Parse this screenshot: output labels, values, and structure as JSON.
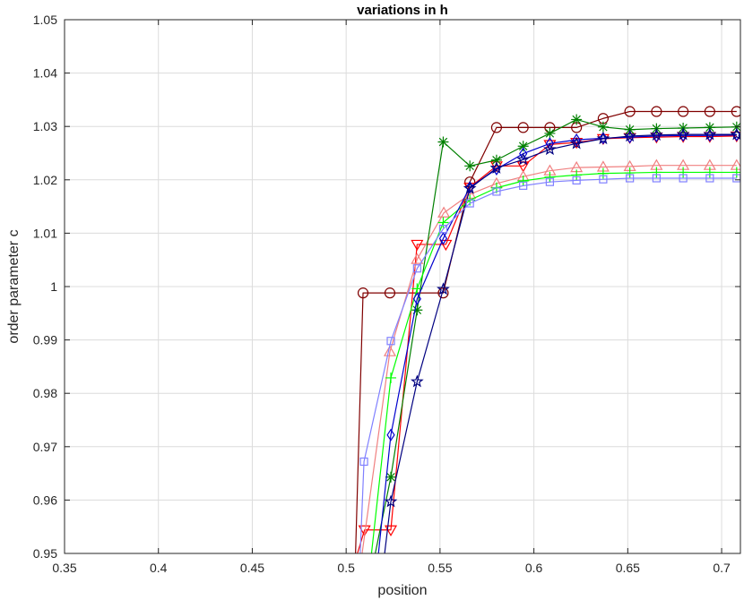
{
  "chart_data": {
    "type": "line",
    "title": "variations in h",
    "xlabel": "position",
    "ylabel": "order parameter c",
    "xlim": [
      0.35,
      0.71
    ],
    "ylim": [
      0.95,
      1.05
    ],
    "grid": true,
    "x_ticks": [
      0.35,
      0.4,
      0.45,
      0.5,
      0.55,
      0.6,
      0.65,
      0.7
    ],
    "x_tick_labels": [
      "0.35",
      "0.4",
      "0.45",
      "0.5",
      "0.55",
      "0.6",
      "0.65",
      "0.7"
    ],
    "y_ticks": [
      0.95,
      0.96,
      0.97,
      0.98,
      0.99,
      1.0,
      1.01,
      1.02,
      1.03,
      1.04,
      1.05
    ],
    "y_tick_labels": [
      "0.95",
      "0.96",
      "0.97",
      "0.98",
      "0.99",
      "1",
      "1.01",
      "1.02",
      "1.03",
      "1.04",
      "1.05"
    ],
    "series": [
      {
        "color": "#800000",
        "marker": "circle",
        "x": [
          0.505,
          0.509,
          0.5233,
          0.5517,
          0.5659,
          0.5801,
          0.5943,
          0.6085,
          0.6227,
          0.6369,
          0.6511,
          0.6653,
          0.6795,
          0.6937,
          0.708
        ],
        "y": [
          0.95,
          0.9988,
          0.9988,
          0.9988,
          1.0196,
          1.0298,
          1.0298,
          1.0298,
          1.0298,
          1.0315,
          1.0328,
          1.0328,
          1.0328,
          1.0328,
          1.0328
        ]
      },
      {
        "color": "#ff0000",
        "marker": "triangle-down",
        "x": [
          0.506,
          0.5098,
          0.5238,
          0.5378,
          0.5531,
          0.5659,
          0.5801,
          0.5943,
          0.6085,
          0.6227,
          0.6369,
          0.6511,
          0.6653,
          0.6795,
          0.6937,
          0.708
        ],
        "y": [
          0.95,
          0.9544,
          0.9544,
          1.0079,
          1.0079,
          1.0186,
          1.0226,
          1.0226,
          1.0266,
          1.027,
          1.0277,
          1.0279,
          1.028,
          1.0281,
          1.0281,
          1.0282
        ]
      },
      {
        "color": "#f08080",
        "marker": "triangle-up",
        "x": [
          0.5085,
          0.5233,
          0.5378,
          0.552,
          0.5659,
          0.5801,
          0.5943,
          0.6085,
          0.6227,
          0.6369,
          0.6511,
          0.6653,
          0.6795,
          0.6937,
          0.708
        ],
        "y": [
          0.95,
          0.9878,
          1.0051,
          1.0138,
          1.0173,
          1.0193,
          1.0206,
          1.0217,
          1.0223,
          1.0224,
          1.0225,
          1.0227,
          1.0227,
          1.0227,
          1.0227
        ]
      },
      {
        "color": "#008000",
        "marker": "asterisk",
        "x": [
          0.5155,
          0.5238,
          0.5378,
          0.5517,
          0.5659,
          0.5801,
          0.5943,
          0.6085,
          0.6227,
          0.6369,
          0.6511,
          0.6653,
          0.6795,
          0.6937,
          0.708
        ],
        "y": [
          0.95,
          0.9643,
          0.9956,
          1.0271,
          1.0226,
          1.0237,
          1.0263,
          1.0287,
          1.0313,
          1.0299,
          1.0294,
          1.0296,
          1.0297,
          1.0298,
          1.0299
        ]
      },
      {
        "color": "#00ff00",
        "marker": "plus",
        "x": [
          0.5135,
          0.5238,
          0.5378,
          0.5517,
          0.5659,
          0.5801,
          0.5943,
          0.6085,
          0.6227,
          0.6369,
          0.6511,
          0.6653,
          0.6795,
          0.6937,
          0.708
        ],
        "y": [
          0.95,
          0.9829,
          0.9996,
          1.012,
          1.0162,
          1.0185,
          1.0198,
          1.0205,
          1.0209,
          1.0212,
          1.0213,
          1.0214,
          1.0214,
          1.0214,
          1.0214
        ]
      },
      {
        "color": "#0000cd",
        "marker": "diamond",
        "x": [
          0.5172,
          0.5238,
          0.5378,
          0.5517,
          0.5659,
          0.5801,
          0.5943,
          0.6085,
          0.6227,
          0.6369,
          0.6511,
          0.6653,
          0.6795,
          0.6937,
          0.708
        ],
        "y": [
          0.95,
          0.9722,
          0.9977,
          1.009,
          1.0186,
          1.022,
          1.0249,
          1.0268,
          1.0275,
          1.0278,
          1.028,
          1.0282,
          1.0283,
          1.0283,
          1.0284
        ]
      },
      {
        "color": "#000080",
        "marker": "pentagram",
        "x": [
          0.5205,
          0.5238,
          0.5378,
          0.5517,
          0.5659,
          0.5801,
          0.5943,
          0.6085,
          0.6227,
          0.6369,
          0.6511,
          0.6653,
          0.6795,
          0.6937,
          0.708
        ],
        "y": [
          0.95,
          0.9597,
          0.9822,
          0.9995,
          1.0184,
          1.0222,
          1.0238,
          1.0257,
          1.0268,
          1.0277,
          1.0282,
          1.0284,
          1.0285,
          1.0285,
          1.0285
        ]
      },
      {
        "color": "#8080ff",
        "marker": "square",
        "x": [
          0.5075,
          0.5095,
          0.5238,
          0.5378,
          0.5517,
          0.5659,
          0.5801,
          0.5943,
          0.6085,
          0.6227,
          0.6369,
          0.6511,
          0.6653,
          0.6795,
          0.6937,
          0.708
        ],
        "y": [
          0.95,
          0.9672,
          0.9898,
          1.0034,
          1.0108,
          1.0156,
          1.0178,
          1.0189,
          1.0196,
          1.0199,
          1.0201,
          1.0203,
          1.0203,
          1.0203,
          1.0203,
          1.0203
        ]
      }
    ]
  }
}
